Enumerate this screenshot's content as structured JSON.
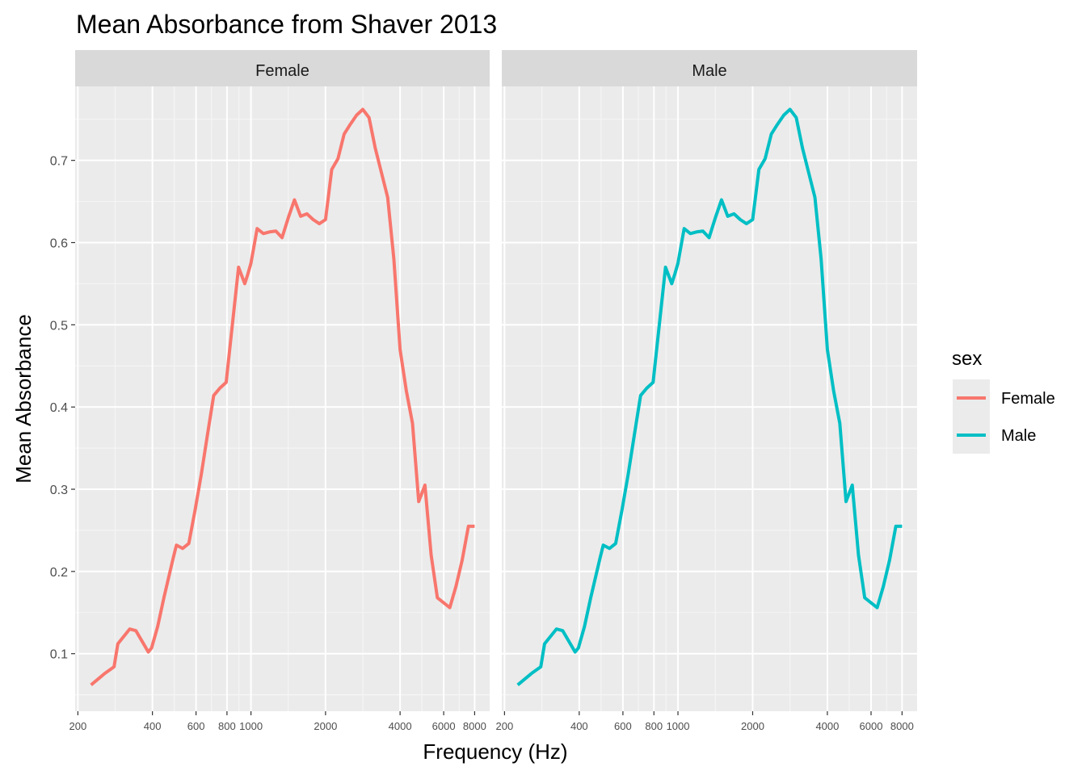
{
  "chart_data": {
    "type": "line",
    "title": "Mean Absorbance from Shaver 2013",
    "xlabel": "Frequency (Hz)",
    "ylabel": "Mean Absorbance",
    "x_scale": "log10",
    "xlim": [
      195,
      9200
    ],
    "ylim": [
      0.03,
      0.79
    ],
    "x_ticks": [
      200,
      400,
      600,
      800,
      1000,
      2000,
      4000,
      6000,
      8000
    ],
    "x_tick_labels": [
      "200",
      "400",
      "600",
      "800",
      "1000",
      "2000",
      "4000",
      "6000",
      "8000"
    ],
    "y_ticks": [
      0.1,
      0.2,
      0.3,
      0.4,
      0.5,
      0.6,
      0.7
    ],
    "y_tick_labels": [
      "0.1",
      "0.2",
      "0.3",
      "0.4",
      "0.5",
      "0.6",
      "0.7"
    ],
    "grid": true,
    "facets": [
      "Female",
      "Male"
    ],
    "legend": {
      "title": "sex",
      "placement": "right",
      "entries": [
        {
          "label": "Female",
          "color": "#F8766D"
        },
        {
          "label": "Male",
          "color": "#00BFC4"
        }
      ]
    },
    "x": [
      226,
      257,
      280,
      290,
      324,
      343,
      385,
      397,
      420,
      445,
      485,
      500,
      530,
      561,
      595,
      630,
      667,
      707,
      749,
      794,
      841,
      891,
      917,
      944,
      972,
      1000,
      1059,
      1122,
      1189,
      1260,
      1335,
      1414,
      1498,
      1587,
      1682,
      1782,
      1888,
      2000,
      2119,
      2245,
      2378,
      2520,
      2670,
      2828,
      2997,
      3175,
      3364,
      3564,
      3775,
      4000,
      4238,
      4490,
      4757,
      5040,
      5339,
      5657,
      5993,
      6350,
      6727,
      7127,
      7551,
      8000
    ],
    "series": [
      {
        "name": "Female",
        "color": "#F8766D",
        "values": [
          0.062,
          0.076,
          0.084,
          0.112,
          0.13,
          0.128,
          0.102,
          0.107,
          0.133,
          0.168,
          0.216,
          0.232,
          0.228,
          0.234,
          0.275,
          0.318,
          0.366,
          0.414,
          0.423,
          0.43,
          0.5,
          0.57,
          0.56,
          0.55,
          0.562,
          0.575,
          0.617,
          0.611,
          0.613,
          0.614,
          0.606,
          0.63,
          0.652,
          0.632,
          0.635,
          0.628,
          0.623,
          0.628,
          0.689,
          0.702,
          0.732,
          0.744,
          0.755,
          0.762,
          0.752,
          0.715,
          0.685,
          0.655,
          0.58,
          0.47,
          0.42,
          0.38,
          0.285,
          0.305,
          0.22,
          0.168,
          0.162,
          0.156,
          0.182,
          0.214,
          0.255,
          0.255
        ]
      },
      {
        "name": "Male",
        "color": "#00BFC4",
        "values": [
          0.062,
          0.076,
          0.084,
          0.112,
          0.13,
          0.128,
          0.102,
          0.107,
          0.133,
          0.168,
          0.216,
          0.232,
          0.228,
          0.234,
          0.275,
          0.318,
          0.366,
          0.414,
          0.423,
          0.43,
          0.5,
          0.57,
          0.56,
          0.55,
          0.562,
          0.575,
          0.617,
          0.611,
          0.613,
          0.614,
          0.606,
          0.63,
          0.652,
          0.632,
          0.635,
          0.628,
          0.623,
          0.628,
          0.689,
          0.702,
          0.732,
          0.744,
          0.755,
          0.762,
          0.752,
          0.715,
          0.685,
          0.655,
          0.58,
          0.47,
          0.42,
          0.38,
          0.285,
          0.305,
          0.22,
          0.168,
          0.162,
          0.156,
          0.182,
          0.214,
          0.255,
          0.255
        ]
      }
    ]
  },
  "colors": {
    "panel_background": "#EBEBEB",
    "strip_background": "#D9D9D9",
    "grid_major": "#FFFFFF",
    "grid_minor": "#F5F5F5"
  }
}
